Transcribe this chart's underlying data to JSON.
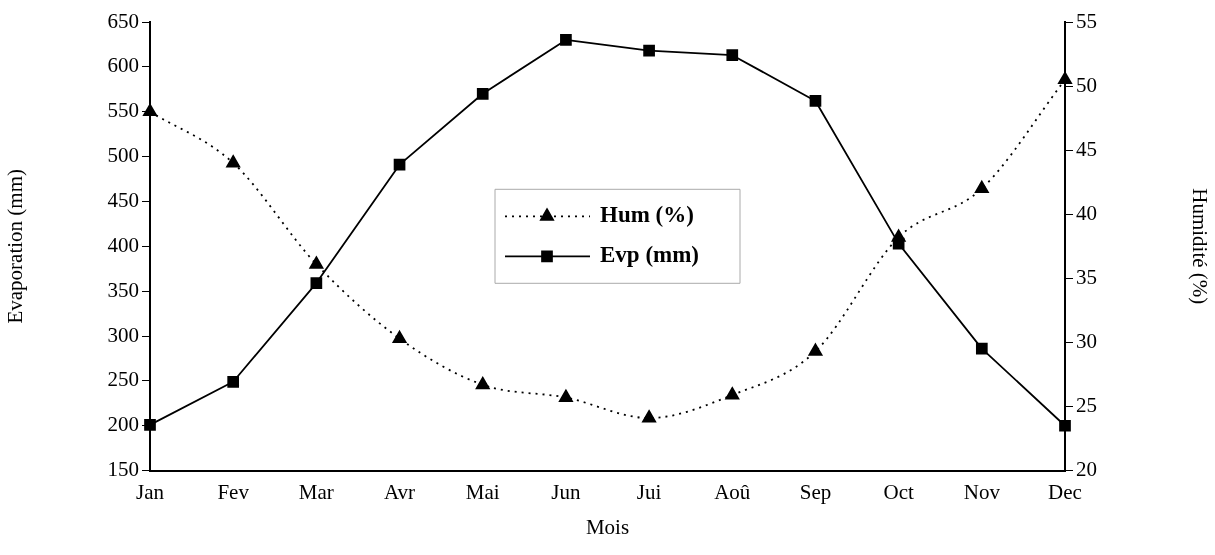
{
  "chart_data": {
    "type": "line",
    "xlabel": "Mois",
    "ylabel": "Evaporation (mm)",
    "y2label": "Humidité (%)",
    "categories": [
      "Jan",
      "Fev",
      "Mar",
      "Avr",
      "Mai",
      "Jun",
      "Jui",
      "Aoû",
      "Sep",
      "Oct",
      "Nov",
      "Dec"
    ],
    "series": [
      {
        "name": "Hum (%)",
        "color": "#000000",
        "axis": "y2",
        "marker": "triangle",
        "line_style": "dotted",
        "values": [
          48,
          44,
          36.1,
          30.3,
          26.7,
          25.7,
          24.1,
          25.9,
          29.3,
          38.2,
          42,
          50.5
        ]
      },
      {
        "name": "Evp (mm)",
        "color": "#000000",
        "marker": "square",
        "line_style": "solid",
        "values": [
          201,
          249,
          359,
          491,
          570,
          630,
          618,
          613,
          562,
          403,
          286,
          200
        ]
      }
    ],
    "ylim": [
      150,
      650
    ],
    "yticks": [
      150,
      200,
      250,
      300,
      350,
      400,
      450,
      500,
      550,
      600,
      650
    ],
    "y2lim": [
      20,
      55
    ],
    "y2ticks": [
      20,
      25,
      30,
      35,
      40,
      45,
      50,
      55
    ],
    "grid": false,
    "legend": "center"
  }
}
